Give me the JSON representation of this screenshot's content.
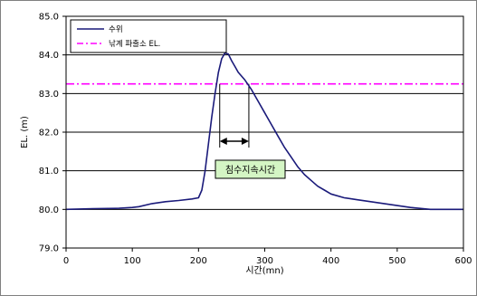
{
  "chart_data": {
    "type": "line",
    "title": "",
    "xlabel": "시간(mn)",
    "ylabel": "EL. (m)",
    "xlim": [
      0,
      600
    ],
    "ylim": [
      79.0,
      85.0
    ],
    "x_ticks": [
      "0",
      "100",
      "200",
      "300",
      "400",
      "500",
      "600"
    ],
    "y_ticks": [
      "79.0",
      "80.0",
      "81.0",
      "82.0",
      "83.0",
      "84.0",
      "85.0"
    ],
    "grid": "horizontal",
    "legend_position": "top-left",
    "series": [
      {
        "name": "수위",
        "color": "#1a1a7a",
        "style": "solid",
        "x": [
          0,
          40,
          80,
          100,
          110,
          130,
          150,
          170,
          190,
          200,
          205,
          210,
          215,
          220,
          225,
          230,
          235,
          240,
          245,
          250,
          255,
          260,
          265,
          270,
          280,
          290,
          300,
          310,
          320,
          330,
          340,
          350,
          360,
          370,
          380,
          390,
          400,
          420,
          440,
          460,
          480,
          500,
          520,
          550,
          575,
          600
        ],
        "y": [
          80.0,
          80.02,
          80.03,
          80.05,
          80.07,
          80.15,
          80.2,
          80.23,
          80.27,
          80.3,
          80.5,
          81.0,
          81.7,
          82.4,
          83.0,
          83.55,
          83.9,
          84.05,
          84.02,
          83.85,
          83.7,
          83.55,
          83.45,
          83.35,
          83.1,
          82.8,
          82.5,
          82.2,
          81.9,
          81.6,
          81.35,
          81.1,
          80.9,
          80.75,
          80.6,
          80.5,
          80.4,
          80.3,
          80.25,
          80.2,
          80.15,
          80.1,
          80.05,
          80.0,
          80.0,
          80.0
        ]
      },
      {
        "name": "낚계 파출소 EL.",
        "color": "#ff00ff",
        "style": "dash-dot",
        "x": [
          0,
          600
        ],
        "y": [
          83.25,
          83.25
        ]
      }
    ],
    "annotation": {
      "label": "침수지속시간",
      "x_start": 232,
      "x_end": 276,
      "y": 83.25
    }
  }
}
